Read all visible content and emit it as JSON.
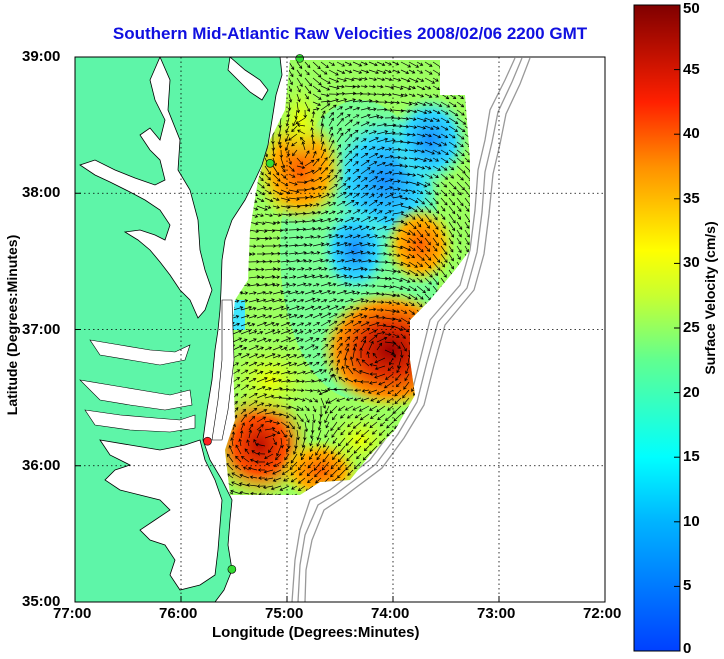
{
  "title": "Southern Mid-Atlantic Raw Velocities 2008/02/06 2200 GMT",
  "xaxis": {
    "label": "Longitude (Degrees:Minutes)",
    "ticks": [
      "77:00",
      "76:00",
      "75:00",
      "74:00",
      "73:00",
      "72:00"
    ]
  },
  "yaxis": {
    "label": "Latitude (Degrees:Minutes)",
    "ticks": [
      "39:00",
      "38:00",
      "37:00",
      "36:00",
      "35:00"
    ]
  },
  "colorbar": {
    "label": "Surface Velocity (cm/s)",
    "ticks": [
      "50",
      "45",
      "40",
      "35",
      "30",
      "25",
      "20",
      "15",
      "10",
      "5",
      "0"
    ],
    "range": [
      0,
      50
    ]
  },
  "map": {
    "lon_range": [
      -77,
      -72
    ],
    "lat_range": [
      35,
      39
    ],
    "grid": true,
    "land_color": "#5ef5a8",
    "stations": [
      {
        "name": "north-station",
        "color": "#33dd33",
        "lon": -74.88,
        "lat": 38.99
      },
      {
        "name": "central-station",
        "color": "#33dd33",
        "lon": -75.16,
        "lat": 38.22
      },
      {
        "name": "south-station",
        "color": "#ff2222",
        "lon": -75.75,
        "lat": 36.18
      },
      {
        "name": "southern-tip-station",
        "color": "#33dd33",
        "lon": -75.52,
        "lat": 35.24
      }
    ]
  }
}
